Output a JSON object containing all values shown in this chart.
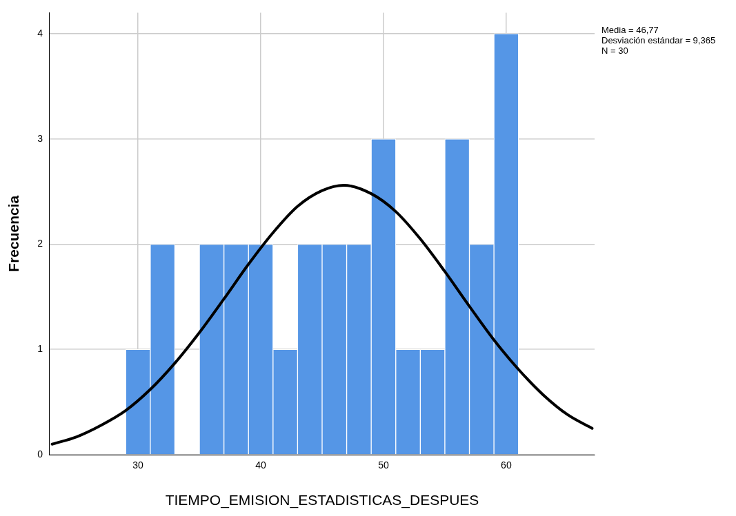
{
  "chart_data": {
    "type": "histogram",
    "xlabel": "TIEMPO_EMISION_ESTADISTICAS_DESPUES",
    "ylabel": "Frecuencia",
    "bins": [
      29,
      31,
      33,
      35,
      37,
      39,
      41,
      43,
      45,
      47,
      49,
      51,
      53,
      55,
      57,
      59,
      61
    ],
    "values": [
      1,
      2,
      0,
      2,
      2,
      2,
      1,
      2,
      2,
      2,
      3,
      1,
      1,
      3,
      2,
      4
    ],
    "color": "#5596e6",
    "series": [
      {
        "type": "line",
        "color": "#000000",
        "x": [
          23,
          25,
          27,
          29,
          31,
          33,
          35,
          37,
          39,
          41,
          43,
          45,
          46.77,
          49,
          51,
          53,
          55,
          57,
          59,
          61,
          63,
          65,
          67
        ],
        "values": [
          0.1,
          0.17,
          0.28,
          0.42,
          0.62,
          0.87,
          1.16,
          1.48,
          1.81,
          2.11,
          2.36,
          2.51,
          2.56,
          2.48,
          2.31,
          2.05,
          1.74,
          1.41,
          1.09,
          0.81,
          0.57,
          0.38,
          0.25
        ]
      }
    ],
    "xlim": [
      22.8,
      67.2
    ],
    "xticks": [
      30,
      40,
      50,
      60
    ],
    "ylim": [
      0,
      4.2
    ],
    "yticks": [
      0,
      1,
      2,
      3,
      4
    ],
    "grid": true,
    "legend": false,
    "marker": "none",
    "line_style": "solid",
    "annotations": [
      "Media = 46,77",
      "Desviación estándar = 9,365",
      "N = 30"
    ]
  }
}
